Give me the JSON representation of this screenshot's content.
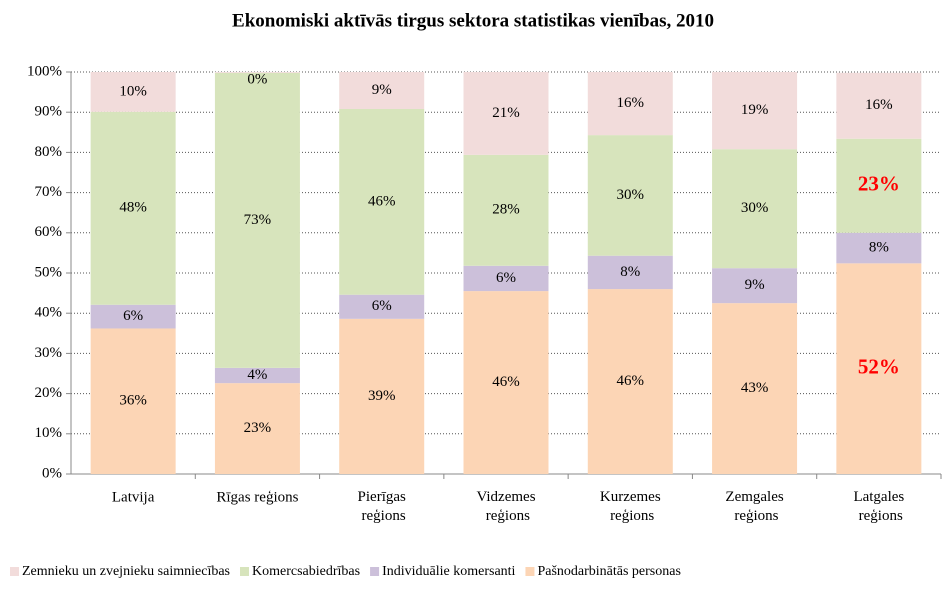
{
  "chart_data": {
    "type": "stacked_bar",
    "title": "Ekonomiski aktīvās tirgus sektora statistikas vienības, 2010",
    "categories": [
      "Latvija",
      "Rīgas reģions",
      "Pierīgas\nreģions",
      "Vidzemes\nreģions",
      "Kurzemes\nreģions",
      "Zemgales\nreģions",
      "Latgales\nreģions"
    ],
    "series": [
      {
        "name": "Pašnodarbinātās personas",
        "color": "#fcd5b5",
        "values": [
          36.2,
          22.6,
          38.6,
          45.5,
          46.0,
          42.5,
          52.4
        ],
        "value_labels": [
          "36%",
          "23%",
          "39%",
          "46%",
          "46%",
          "43%",
          "52%"
        ],
        "label_colors": [
          "#000000",
          "#000000",
          "#000000",
          "#000000",
          "#000000",
          "#000000",
          "#ff0000"
        ]
      },
      {
        "name": "Individuālie komersanti",
        "color": "#ccc0da",
        "values": [
          5.9,
          3.8,
          6.0,
          6.3,
          8.3,
          8.7,
          7.6
        ],
        "value_labels": [
          "6%",
          "4%",
          "6%",
          "6%",
          "8%",
          "9%",
          "8%"
        ]
      },
      {
        "name": "Komercsabiedrības",
        "color": "#d7e4bc",
        "values": [
          48.0,
          73.4,
          46.2,
          27.6,
          30.0,
          29.6,
          23.4
        ],
        "value_labels": [
          "48%",
          "73%",
          "46%",
          "28%",
          "30%",
          "30%",
          "23%"
        ],
        "label_colors": [
          "#000000",
          "#000000",
          "#000000",
          "#000000",
          "#000000",
          "#000000",
          "#ff0000"
        ]
      },
      {
        "name": "Zemnieku un zvejnieku saimniecības",
        "color": "#f2dcdb",
        "values": [
          9.9,
          0.2,
          9.2,
          20.6,
          15.7,
          19.2,
          16.4
        ],
        "value_labels": [
          "10%",
          "0%",
          "9%",
          "21%",
          "16%",
          "19%",
          "16%"
        ]
      }
    ],
    "ylim": [
      0,
      100
    ],
    "yticks": [
      {
        "value": 0,
        "label": "0%"
      },
      {
        "value": 10,
        "label": "10%"
      },
      {
        "value": 20,
        "label": "20%"
      },
      {
        "value": 30,
        "label": "30%"
      },
      {
        "value": 40,
        "label": "40%"
      },
      {
        "value": 50,
        "label": "50%"
      },
      {
        "value": 60,
        "label": "60%"
      },
      {
        "value": 70,
        "label": "70%"
      },
      {
        "value": 80,
        "label": "80%"
      },
      {
        "value": 90,
        "label": "90%"
      },
      {
        "value": 100,
        "label": "100%"
      }
    ],
    "grid": true,
    "legend": "bottom"
  }
}
